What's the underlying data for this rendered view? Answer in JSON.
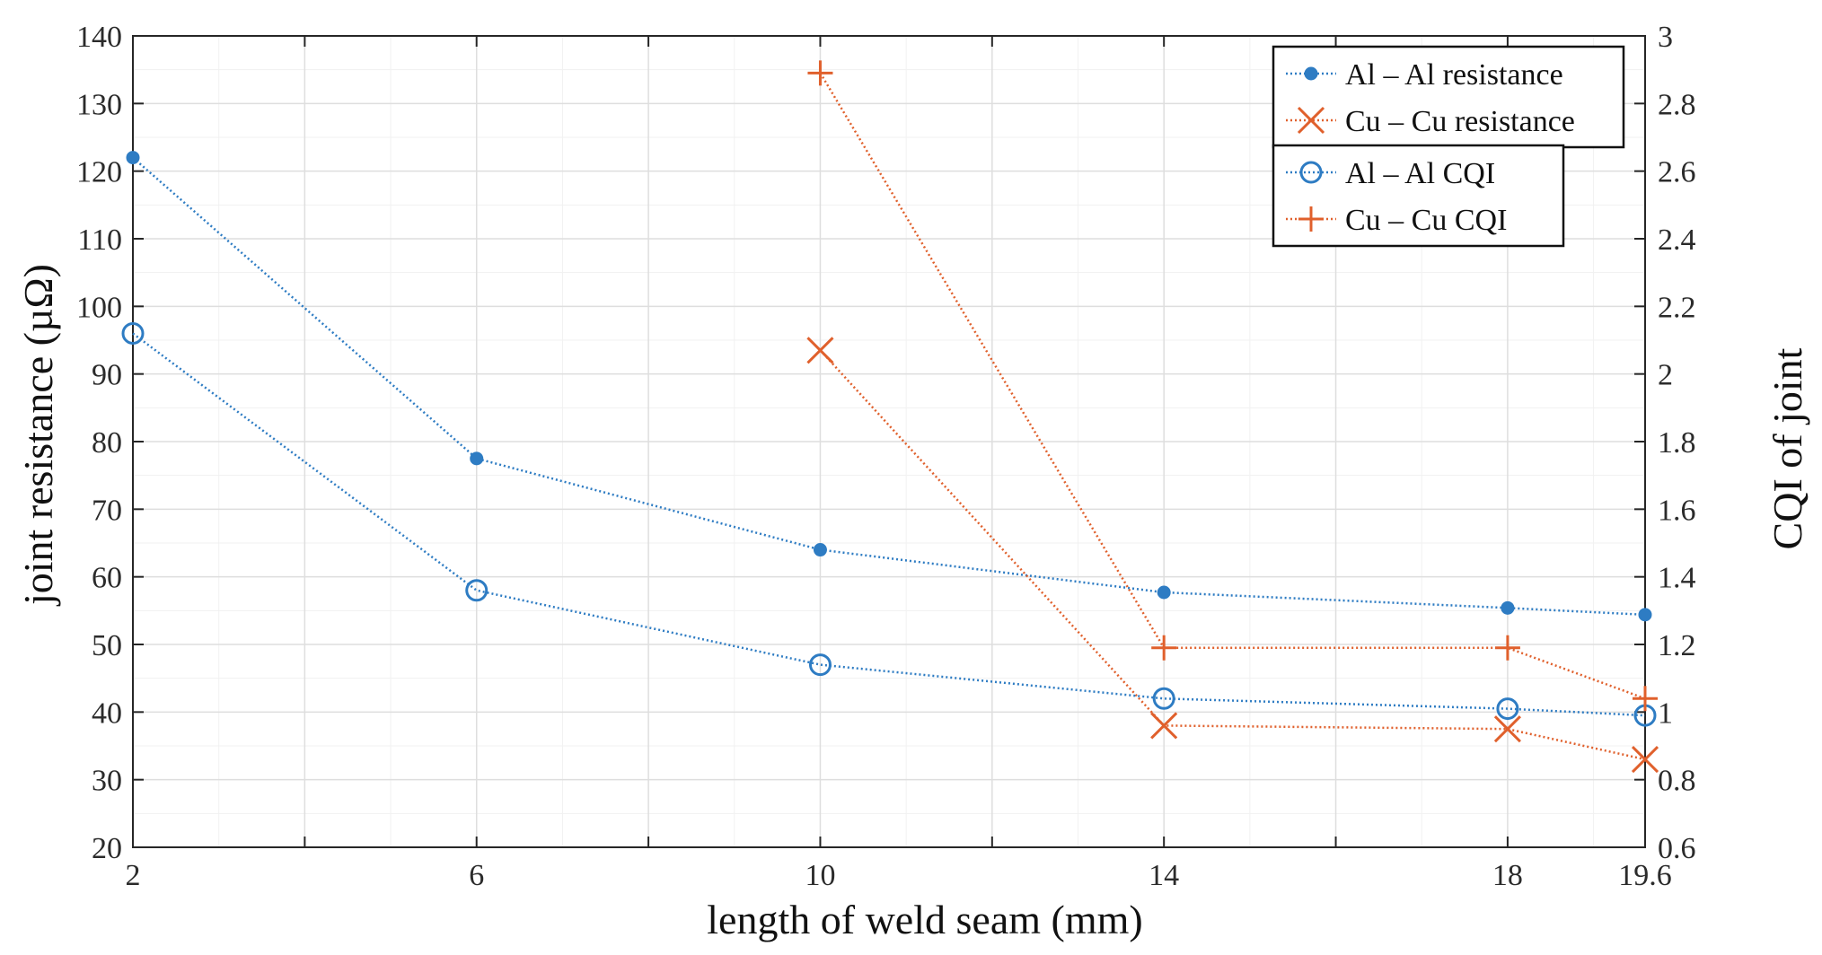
{
  "chart_data": {
    "type": "line",
    "xlabel": "length  of weld seam (mm)",
    "ylabel_left": "joint  resistance (µΩ)",
    "ylabel_right": "CQI of joint",
    "xlim": [
      2,
      19.6
    ],
    "x_ticks": [
      2,
      6,
      10,
      14,
      18,
      19.6
    ],
    "x_tick_labels": [
      "2",
      "6",
      "10",
      "14",
      "18",
      "19.6"
    ],
    "ylim_left": [
      20,
      140
    ],
    "y_ticks_left": [
      "20",
      "30",
      "40",
      "50",
      "60",
      "70",
      "80",
      "90",
      "100",
      "110",
      "120",
      "130",
      "140"
    ],
    "ylim_right": [
      0.6,
      3
    ],
    "y_ticks_right": [
      "0.6",
      "0.8",
      "1",
      "1.2",
      "1.4",
      "1.6",
      "1.8",
      "2",
      "2.2",
      "2.4",
      "2.6",
      "2.8",
      "3"
    ],
    "grid": true,
    "colors": {
      "blue": "#2e7cc3",
      "orange": "#e0602c"
    },
    "series": [
      {
        "name": "Al – Al resistance",
        "axis": "left",
        "marker": "dot",
        "color": "#2e7cc3",
        "x": [
          2,
          6,
          10,
          14,
          18,
          19.6
        ],
        "values": [
          122,
          77.5,
          64,
          57.7,
          55.4,
          54.4
        ]
      },
      {
        "name": "Cu – Cu resistance",
        "axis": "left",
        "marker": "x",
        "color": "#e0602c",
        "x": [
          10,
          14,
          18,
          19.6
        ],
        "values": [
          93.5,
          38,
          37.5,
          33
        ]
      },
      {
        "name": "Al – Al CQI",
        "axis": "right",
        "marker": "circle",
        "color": "#2e7cc3",
        "x": [
          2,
          6,
          10,
          14,
          18,
          19.6
        ],
        "values": [
          2.12,
          1.36,
          1.14,
          1.04,
          1.01,
          0.99
        ]
      },
      {
        "name": "Cu – Cu CQI",
        "axis": "right",
        "marker": "plus",
        "color": "#e0602c",
        "x": [
          10,
          14,
          18,
          19.6
        ],
        "values": [
          2.89,
          1.19,
          1.19,
          1.04
        ]
      }
    ],
    "legend": {
      "position": "top-right",
      "groups": [
        [
          "Al – Al resistance",
          "Cu – Cu resistance"
        ],
        [
          "Al – Al CQI",
          "Cu – Cu CQI"
        ]
      ]
    }
  }
}
